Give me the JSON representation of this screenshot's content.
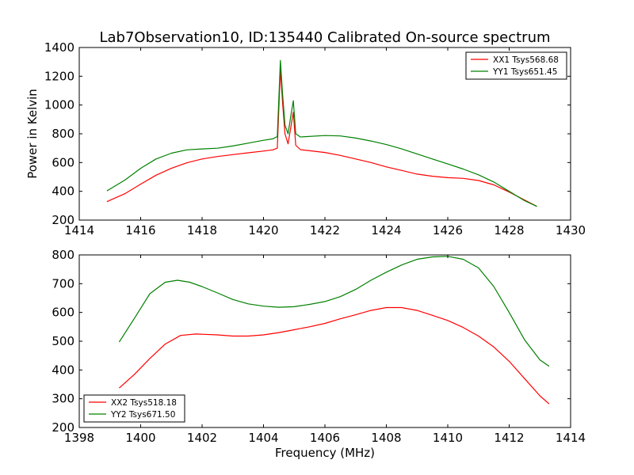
{
  "figure": {
    "title": "Lab7Observation10, ID:135440 Calibrated On-source spectrum",
    "ylabel": "Power in Kelvin",
    "xlabel": "Frequency (MHz)"
  },
  "chart_data": [
    {
      "type": "line",
      "xlim": [
        1414,
        1430
      ],
      "ylim": [
        200,
        1400
      ],
      "xticks": [
        1414,
        1416,
        1418,
        1420,
        1422,
        1424,
        1426,
        1428,
        1430
      ],
      "yticks": [
        200,
        400,
        600,
        800,
        1000,
        1200,
        1400
      ],
      "grid": false,
      "legend_position": "top-right",
      "series": [
        {
          "name": "XX1 Tsys568.68",
          "color": "#ff0000",
          "points": [
            [
              1414.9,
              328
            ],
            [
              1415.5,
              385
            ],
            [
              1416.0,
              450
            ],
            [
              1416.5,
              512
            ],
            [
              1417.0,
              560
            ],
            [
              1417.5,
              598
            ],
            [
              1418.0,
              625
            ],
            [
              1418.5,
              642
            ],
            [
              1419.0,
              655
            ],
            [
              1419.5,
              668
            ],
            [
              1420.0,
              680
            ],
            [
              1420.3,
              688
            ],
            [
              1420.45,
              700
            ],
            [
              1420.55,
              1250
            ],
            [
              1420.62,
              1020
            ],
            [
              1420.7,
              800
            ],
            [
              1420.8,
              730
            ],
            [
              1420.9,
              860
            ],
            [
              1420.97,
              950
            ],
            [
              1421.05,
              720
            ],
            [
              1421.2,
              690
            ],
            [
              1422.0,
              670
            ],
            [
              1422.5,
              650
            ],
            [
              1423.0,
              625
            ],
            [
              1423.5,
              600
            ],
            [
              1424.0,
              570
            ],
            [
              1424.5,
              545
            ],
            [
              1425.0,
              520
            ],
            [
              1425.5,
              505
            ],
            [
              1426.0,
              495
            ],
            [
              1426.5,
              490
            ],
            [
              1427.0,
              475
            ],
            [
              1427.5,
              445
            ],
            [
              1428.0,
              395
            ],
            [
              1428.5,
              340
            ],
            [
              1428.9,
              295
            ]
          ]
        },
        {
          "name": "YY1 Tsys651.45",
          "color": "#008000",
          "points": [
            [
              1414.9,
              403
            ],
            [
              1415.5,
              480
            ],
            [
              1416.0,
              560
            ],
            [
              1416.5,
              625
            ],
            [
              1417.0,
              665
            ],
            [
              1417.5,
              688
            ],
            [
              1418.0,
              695
            ],
            [
              1418.5,
              700
            ],
            [
              1419.0,
              715
            ],
            [
              1419.5,
              735
            ],
            [
              1420.0,
              755
            ],
            [
              1420.3,
              765
            ],
            [
              1420.45,
              780
            ],
            [
              1420.55,
              1310
            ],
            [
              1420.62,
              1080
            ],
            [
              1420.7,
              860
            ],
            [
              1420.8,
              800
            ],
            [
              1420.9,
              940
            ],
            [
              1420.97,
              1030
            ],
            [
              1421.05,
              800
            ],
            [
              1421.2,
              778
            ],
            [
              1422.0,
              788
            ],
            [
              1422.5,
              785
            ],
            [
              1423.0,
              770
            ],
            [
              1423.5,
              750
            ],
            [
              1424.0,
              725
            ],
            [
              1424.5,
              695
            ],
            [
              1425.0,
              660
            ],
            [
              1425.5,
              625
            ],
            [
              1426.0,
              590
            ],
            [
              1426.5,
              555
            ],
            [
              1427.0,
              515
            ],
            [
              1427.5,
              465
            ],
            [
              1428.0,
              400
            ],
            [
              1428.5,
              335
            ],
            [
              1428.9,
              295
            ]
          ]
        }
      ]
    },
    {
      "type": "line",
      "xlim": [
        1398,
        1414
      ],
      "ylim": [
        200,
        800
      ],
      "xticks": [
        1398,
        1400,
        1402,
        1404,
        1406,
        1408,
        1410,
        1412,
        1414
      ],
      "yticks": [
        200,
        300,
        400,
        500,
        600,
        700,
        800
      ],
      "grid": false,
      "legend_position": "bottom-left",
      "series": [
        {
          "name": "XX2 Tsys518.18",
          "color": "#ff0000",
          "points": [
            [
              1399.3,
              337
            ],
            [
              1399.8,
              385
            ],
            [
              1400.3,
              440
            ],
            [
              1400.8,
              490
            ],
            [
              1401.3,
              520
            ],
            [
              1401.8,
              525
            ],
            [
              1402.5,
              522
            ],
            [
              1403.0,
              518
            ],
            [
              1403.5,
              518
            ],
            [
              1404.0,
              522
            ],
            [
              1404.5,
              530
            ],
            [
              1405.0,
              540
            ],
            [
              1405.5,
              550
            ],
            [
              1406.0,
              562
            ],
            [
              1406.5,
              578
            ],
            [
              1407.0,
              592
            ],
            [
              1407.5,
              607
            ],
            [
              1408.0,
              617
            ],
            [
              1408.5,
              617
            ],
            [
              1409.0,
              607
            ],
            [
              1409.5,
              590
            ],
            [
              1410.0,
              572
            ],
            [
              1410.5,
              548
            ],
            [
              1411.0,
              518
            ],
            [
              1411.5,
              480
            ],
            [
              1412.0,
              430
            ],
            [
              1412.5,
              370
            ],
            [
              1413.0,
              310
            ],
            [
              1413.3,
              282
            ]
          ]
        },
        {
          "name": "YY2 Tsys671.50",
          "color": "#008000",
          "points": [
            [
              1399.3,
              497
            ],
            [
              1399.8,
              580
            ],
            [
              1400.3,
              665
            ],
            [
              1400.8,
              705
            ],
            [
              1401.2,
              712
            ],
            [
              1401.6,
              705
            ],
            [
              1402.0,
              690
            ],
            [
              1402.5,
              668
            ],
            [
              1403.0,
              645
            ],
            [
              1403.5,
              630
            ],
            [
              1404.0,
              622
            ],
            [
              1404.5,
              618
            ],
            [
              1405.0,
              620
            ],
            [
              1405.5,
              628
            ],
            [
              1406.0,
              638
            ],
            [
              1406.5,
              655
            ],
            [
              1407.0,
              680
            ],
            [
              1407.5,
              712
            ],
            [
              1408.0,
              740
            ],
            [
              1408.5,
              765
            ],
            [
              1409.0,
              785
            ],
            [
              1409.5,
              793
            ],
            [
              1410.0,
              795
            ],
            [
              1410.5,
              785
            ],
            [
              1411.0,
              755
            ],
            [
              1411.5,
              690
            ],
            [
              1412.0,
              600
            ],
            [
              1412.5,
              505
            ],
            [
              1413.0,
              435
            ],
            [
              1413.3,
              413
            ]
          ]
        }
      ]
    }
  ]
}
